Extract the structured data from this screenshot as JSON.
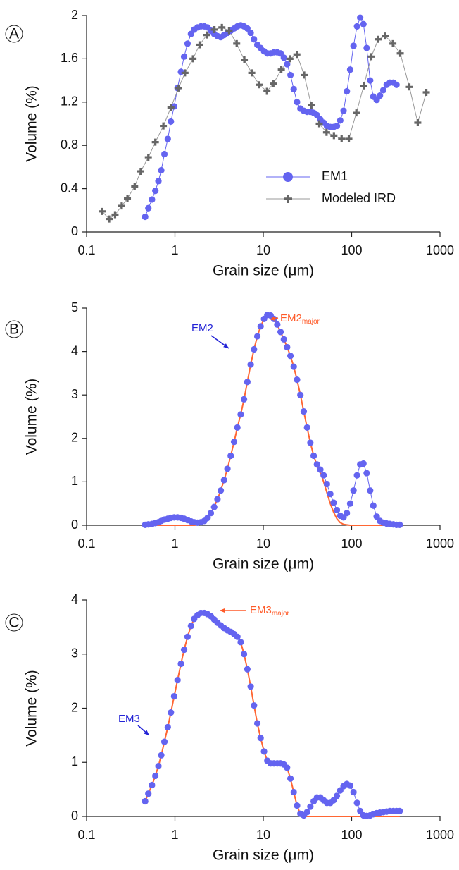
{
  "chart_data": [
    {
      "type": "line",
      "panel": "A",
      "x_label": "Grain size (μm)",
      "y_label": "Volume (%)",
      "xlim": [
        0.1,
        1000
      ],
      "xticks": [
        0.1,
        1,
        10,
        100,
        1000
      ],
      "xlog": true,
      "ylim": [
        0,
        2
      ],
      "yticks": [
        0,
        0.4,
        0.8,
        1.2,
        1.6,
        2
      ],
      "legend": "lower-right",
      "series": [
        {
          "name": "EM1",
          "color": "#6464f0",
          "marker": "circle",
          "x": [
            0.46,
            0.5,
            0.55,
            0.6,
            0.65,
            0.7,
            0.76,
            0.83,
            0.9,
            0.98,
            1.07,
            1.17,
            1.27,
            1.39,
            1.52,
            1.65,
            1.8,
            1.97,
            2.15,
            2.34,
            2.55,
            2.78,
            3.03,
            3.3,
            3.6,
            3.93,
            4.28,
            4.67,
            5.09,
            5.55,
            6.05,
            6.6,
            7.2,
            7.85,
            8.56,
            9.33,
            10.2,
            11.1,
            12.1,
            13.2,
            14.4,
            15.7,
            17.1,
            18.6,
            20.3,
            22.1,
            24.1,
            26.3,
            28.7,
            31.3,
            34.1,
            37.2,
            40.5,
            44.2,
            48.2,
            52.5,
            57.3,
            62.5,
            68.1,
            74.3,
            81,
            88.3,
            96.3,
            105,
            115,
            125,
            136,
            148,
            162,
            176,
            192,
            209,
            228,
            249,
            271,
            296,
            322
          ],
          "values": [
            0.14,
            0.22,
            0.3,
            0.38,
            0.47,
            0.57,
            0.72,
            0.86,
            1.02,
            1.16,
            1.33,
            1.48,
            1.62,
            1.74,
            1.83,
            1.87,
            1.89,
            1.9,
            1.9,
            1.89,
            1.86,
            1.83,
            1.81,
            1.8,
            1.82,
            1.84,
            1.86,
            1.88,
            1.9,
            1.91,
            1.9,
            1.88,
            1.84,
            1.78,
            1.73,
            1.7,
            1.67,
            1.65,
            1.65,
            1.66,
            1.66,
            1.65,
            1.61,
            1.55,
            1.45,
            1.32,
            1.2,
            1.14,
            1.12,
            1.11,
            1.11,
            1.1,
            1.08,
            1.04,
            1.01,
            0.98,
            0.97,
            0.97,
            0.98,
            1.03,
            1.12,
            1.3,
            1.5,
            1.72,
            1.9,
            1.98,
            1.92,
            1.7,
            1.4,
            1.25,
            1.22,
            1.26,
            1.31,
            1.36,
            1.38,
            1.38,
            1.36
          ]
        },
        {
          "name": "Modeled IRD",
          "color": "#666666",
          "marker": "plus",
          "x": [
            0.15,
            0.18,
            0.21,
            0.25,
            0.29,
            0.35,
            0.41,
            0.5,
            0.6,
            0.74,
            0.9,
            1.1,
            1.3,
            1.6,
            1.9,
            2.3,
            2.8,
            3.4,
            4.1,
            5.0,
            6.1,
            7.4,
            9,
            11,
            13,
            16,
            20,
            24,
            29,
            35,
            43,
            52,
            63,
            77,
            93,
            113,
            137,
            167,
            200,
            240,
            293,
            355,
            450,
            560,
            700
          ],
          "values": [
            0.19,
            0.12,
            0.16,
            0.24,
            0.31,
            0.42,
            0.56,
            0.69,
            0.83,
            0.98,
            1.15,
            1.33,
            1.47,
            1.6,
            1.73,
            1.82,
            1.87,
            1.89,
            1.86,
            1.74,
            1.59,
            1.47,
            1.36,
            1.3,
            1.37,
            1.5,
            1.6,
            1.64,
            1.45,
            1.17,
            1.0,
            0.92,
            0.89,
            0.86,
            0.86,
            1.1,
            1.35,
            1.62,
            1.78,
            1.81,
            1.74,
            1.65,
            1.34,
            1.01,
            1.29
          ]
        }
      ]
    },
    {
      "type": "line",
      "panel": "B",
      "x_label": "Grain size (μm)",
      "y_label": "Volume (%)",
      "xlim": [
        0.1,
        1000
      ],
      "xticks": [
        0.1,
        1,
        10,
        100,
        1000
      ],
      "xlog": true,
      "ylim": [
        0,
        5
      ],
      "yticks": [
        0,
        1,
        2,
        3,
        4,
        5
      ],
      "annotations": [
        {
          "text": "EM2",
          "color": "#2323d6"
        },
        {
          "text": "EM2",
          "sub": "major",
          "color": "#ff5a28"
        }
      ],
      "series": [
        {
          "color": "#6464f0",
          "marker": "circle",
          "x": [
            0.46,
            0.5,
            0.55,
            0.6,
            0.65,
            0.7,
            0.76,
            0.83,
            0.9,
            0.98,
            1.07,
            1.17,
            1.27,
            1.39,
            1.52,
            1.65,
            1.8,
            1.97,
            2.15,
            2.34,
            2.55,
            2.78,
            3.03,
            3.3,
            3.6,
            3.93,
            4.28,
            4.67,
            5.09,
            5.55,
            6.05,
            6.6,
            7.2,
            7.85,
            8.56,
            9.33,
            10.2,
            11.1,
            12.1,
            13.2,
            14.4,
            15.7,
            17.1,
            18.6,
            20.3,
            22.1,
            24.1,
            26.3,
            28.7,
            31.3,
            34.1,
            37.2,
            40.5,
            44.2,
            48.2,
            52.5,
            57.3,
            62.5,
            68.1,
            74.3,
            81,
            88.3,
            96.3,
            105,
            115,
            125,
            136,
            148,
            162,
            176,
            192,
            209,
            228,
            249,
            271,
            296,
            322,
            350
          ],
          "values": [
            0.01,
            0.02,
            0.03,
            0.05,
            0.07,
            0.1,
            0.13,
            0.15,
            0.17,
            0.18,
            0.18,
            0.17,
            0.15,
            0.12,
            0.09,
            0.07,
            0.06,
            0.07,
            0.1,
            0.17,
            0.28,
            0.42,
            0.6,
            0.8,
            1.04,
            1.3,
            1.6,
            1.92,
            2.25,
            2.55,
            2.9,
            3.3,
            3.7,
            4.05,
            4.35,
            4.58,
            4.75,
            4.84,
            4.83,
            4.75,
            4.62,
            4.45,
            4.28,
            4.1,
            3.9,
            3.65,
            3.35,
            3.0,
            2.62,
            2.25,
            1.9,
            1.6,
            1.4,
            1.28,
            1.15,
            0.95,
            0.72,
            0.52,
            0.35,
            0.22,
            0.18,
            0.28,
            0.5,
            0.8,
            1.15,
            1.4,
            1.42,
            1.2,
            0.8,
            0.45,
            0.2,
            0.1,
            0.06,
            0.04,
            0.03,
            0.02,
            0.01,
            0.01
          ]
        },
        {
          "color": "#ff6633",
          "marker": "none",
          "x": [
            0.46,
            0.5,
            0.55,
            0.6,
            0.65,
            0.7,
            0.76,
            0.83,
            0.9,
            0.98,
            1.07,
            1.17,
            1.27,
            1.39,
            1.52,
            1.65,
            1.8,
            1.97,
            2.15,
            2.34,
            2.55,
            2.78,
            3.03,
            3.3,
            3.6,
            3.93,
            4.28,
            4.67,
            5.09,
            5.55,
            6.05,
            6.6,
            7.2,
            7.85,
            8.56,
            9.33,
            10.2,
            11.1,
            12.1,
            13.2,
            14.4,
            15.7,
            17.1,
            18.6,
            20.3,
            22.1,
            24.1,
            26.3,
            28.7,
            31.3,
            34.1,
            37.2,
            40.5,
            44.2,
            48.2,
            52.5,
            57.3,
            62.5,
            68.1,
            74.3,
            81,
            88.3,
            96.3,
            105,
            115,
            125,
            136,
            148,
            162,
            176,
            192,
            209,
            228,
            249,
            271,
            296,
            322,
            350
          ],
          "values": [
            0,
            0,
            0,
            0,
            0,
            0,
            0,
            0,
            0,
            0,
            0,
            0,
            0,
            0,
            0,
            0,
            0.01,
            0.03,
            0.07,
            0.15,
            0.28,
            0.42,
            0.6,
            0.8,
            1.04,
            1.3,
            1.6,
            1.92,
            2.25,
            2.55,
            2.9,
            3.3,
            3.7,
            4.05,
            4.35,
            4.58,
            4.75,
            4.84,
            4.83,
            4.75,
            4.62,
            4.45,
            4.28,
            4.1,
            3.9,
            3.65,
            3.35,
            3.0,
            2.62,
            2.25,
            1.9,
            1.6,
            1.38,
            1.22,
            1.0,
            0.75,
            0.5,
            0.3,
            0.15,
            0.06,
            0.02,
            0.01,
            0,
            0,
            0,
            0,
            0,
            0,
            0,
            0,
            0,
            0,
            0,
            0,
            0,
            0,
            0,
            0
          ]
        }
      ]
    },
    {
      "type": "line",
      "panel": "C",
      "x_label": "Grain size (μm)",
      "y_label": "Volume (%)",
      "xlim": [
        0.1,
        1000
      ],
      "xticks": [
        0.1,
        1,
        10,
        100,
        1000
      ],
      "xlog": true,
      "ylim": [
        0,
        4
      ],
      "yticks": [
        0,
        1,
        2,
        3,
        4
      ],
      "annotations": [
        {
          "text": "EM3",
          "color": "#2323d6"
        },
        {
          "text": "EM3",
          "sub": "major",
          "color": "#ff5a28"
        }
      ],
      "series": [
        {
          "color": "#6464f0",
          "marker": "circle",
          "x": [
            0.46,
            0.5,
            0.55,
            0.6,
            0.65,
            0.7,
            0.76,
            0.83,
            0.9,
            0.98,
            1.07,
            1.17,
            1.27,
            1.39,
            1.52,
            1.65,
            1.8,
            1.97,
            2.15,
            2.34,
            2.55,
            2.78,
            3.03,
            3.3,
            3.6,
            3.93,
            4.28,
            4.67,
            5.09,
            5.55,
            6.05,
            6.6,
            7.2,
            7.85,
            8.56,
            9.33,
            10.2,
            11.1,
            12.1,
            13.2,
            14.4,
            15.7,
            17.1,
            18.6,
            20.3,
            22.1,
            24.1,
            26.3,
            28.7,
            31.3,
            34.1,
            37.2,
            40.5,
            44.2,
            48.2,
            52.5,
            57.3,
            62.5,
            68.1,
            74.3,
            81,
            88.3,
            96.3,
            105,
            115,
            125,
            136,
            148,
            162,
            176,
            192,
            209,
            228,
            249,
            271,
            296,
            322,
            350
          ],
          "values": [
            0.28,
            0.42,
            0.58,
            0.75,
            0.93,
            1.13,
            1.38,
            1.65,
            1.92,
            2.22,
            2.52,
            2.82,
            3.08,
            3.32,
            3.52,
            3.65,
            3.72,
            3.76,
            3.76,
            3.74,
            3.7,
            3.64,
            3.58,
            3.53,
            3.48,
            3.44,
            3.41,
            3.37,
            3.32,
            3.22,
            3.0,
            2.72,
            2.4,
            2.05,
            1.72,
            1.45,
            1.2,
            1.03,
            0.98,
            0.98,
            0.98,
            0.98,
            0.96,
            0.9,
            0.7,
            0.45,
            0.2,
            0.05,
            0.02,
            0.08,
            0.18,
            0.28,
            0.35,
            0.35,
            0.3,
            0.25,
            0.25,
            0.3,
            0.38,
            0.48,
            0.56,
            0.6,
            0.57,
            0.45,
            0.25,
            0.1,
            0.02,
            0.01,
            0.02,
            0.04,
            0.06,
            0.07,
            0.08,
            0.09,
            0.1,
            0.1,
            0.1,
            0.1
          ]
        },
        {
          "color": "#ff6633",
          "marker": "none",
          "x": [
            0.46,
            0.5,
            0.55,
            0.6,
            0.65,
            0.7,
            0.76,
            0.83,
            0.9,
            0.98,
            1.07,
            1.17,
            1.27,
            1.39,
            1.52,
            1.65,
            1.8,
            1.97,
            2.15,
            2.34,
            2.55,
            2.78,
            3.03,
            3.3,
            3.6,
            3.93,
            4.28,
            4.67,
            5.09,
            5.55,
            6.05,
            6.6,
            7.2,
            7.85,
            8.56,
            9.33,
            10.2,
            11.1,
            12.1,
            13.2,
            14.4,
            15.7,
            17.1,
            18.6,
            20.3,
            22.1,
            24.1,
            26.3,
            28.7,
            31.3,
            34.1,
            37.2,
            40.5,
            44.2,
            48.2,
            52.5,
            57.3,
            62.5,
            68.1,
            74.3,
            81,
            88.3,
            96.3,
            105,
            115,
            125,
            136,
            148,
            162,
            176,
            192,
            209,
            228,
            249,
            271,
            296,
            322,
            350
          ],
          "values": [
            0.28,
            0.42,
            0.58,
            0.75,
            0.93,
            1.13,
            1.38,
            1.65,
            1.92,
            2.22,
            2.52,
            2.82,
            3.08,
            3.32,
            3.52,
            3.65,
            3.72,
            3.76,
            3.76,
            3.74,
            3.7,
            3.64,
            3.58,
            3.53,
            3.48,
            3.44,
            3.41,
            3.37,
            3.32,
            3.22,
            3.0,
            2.72,
            2.4,
            2.05,
            1.72,
            1.45,
            1.2,
            1.03,
            0.98,
            0.98,
            0.98,
            0.98,
            0.96,
            0.9,
            0.7,
            0.45,
            0.2,
            0.04,
            0,
            0,
            0,
            0,
            0,
            0,
            0,
            0,
            0,
            0,
            0,
            0,
            0,
            0,
            0,
            0,
            0,
            0,
            0,
            0,
            0,
            0,
            0,
            0,
            0,
            0,
            0,
            0,
            0,
            0
          ]
        }
      ]
    }
  ]
}
